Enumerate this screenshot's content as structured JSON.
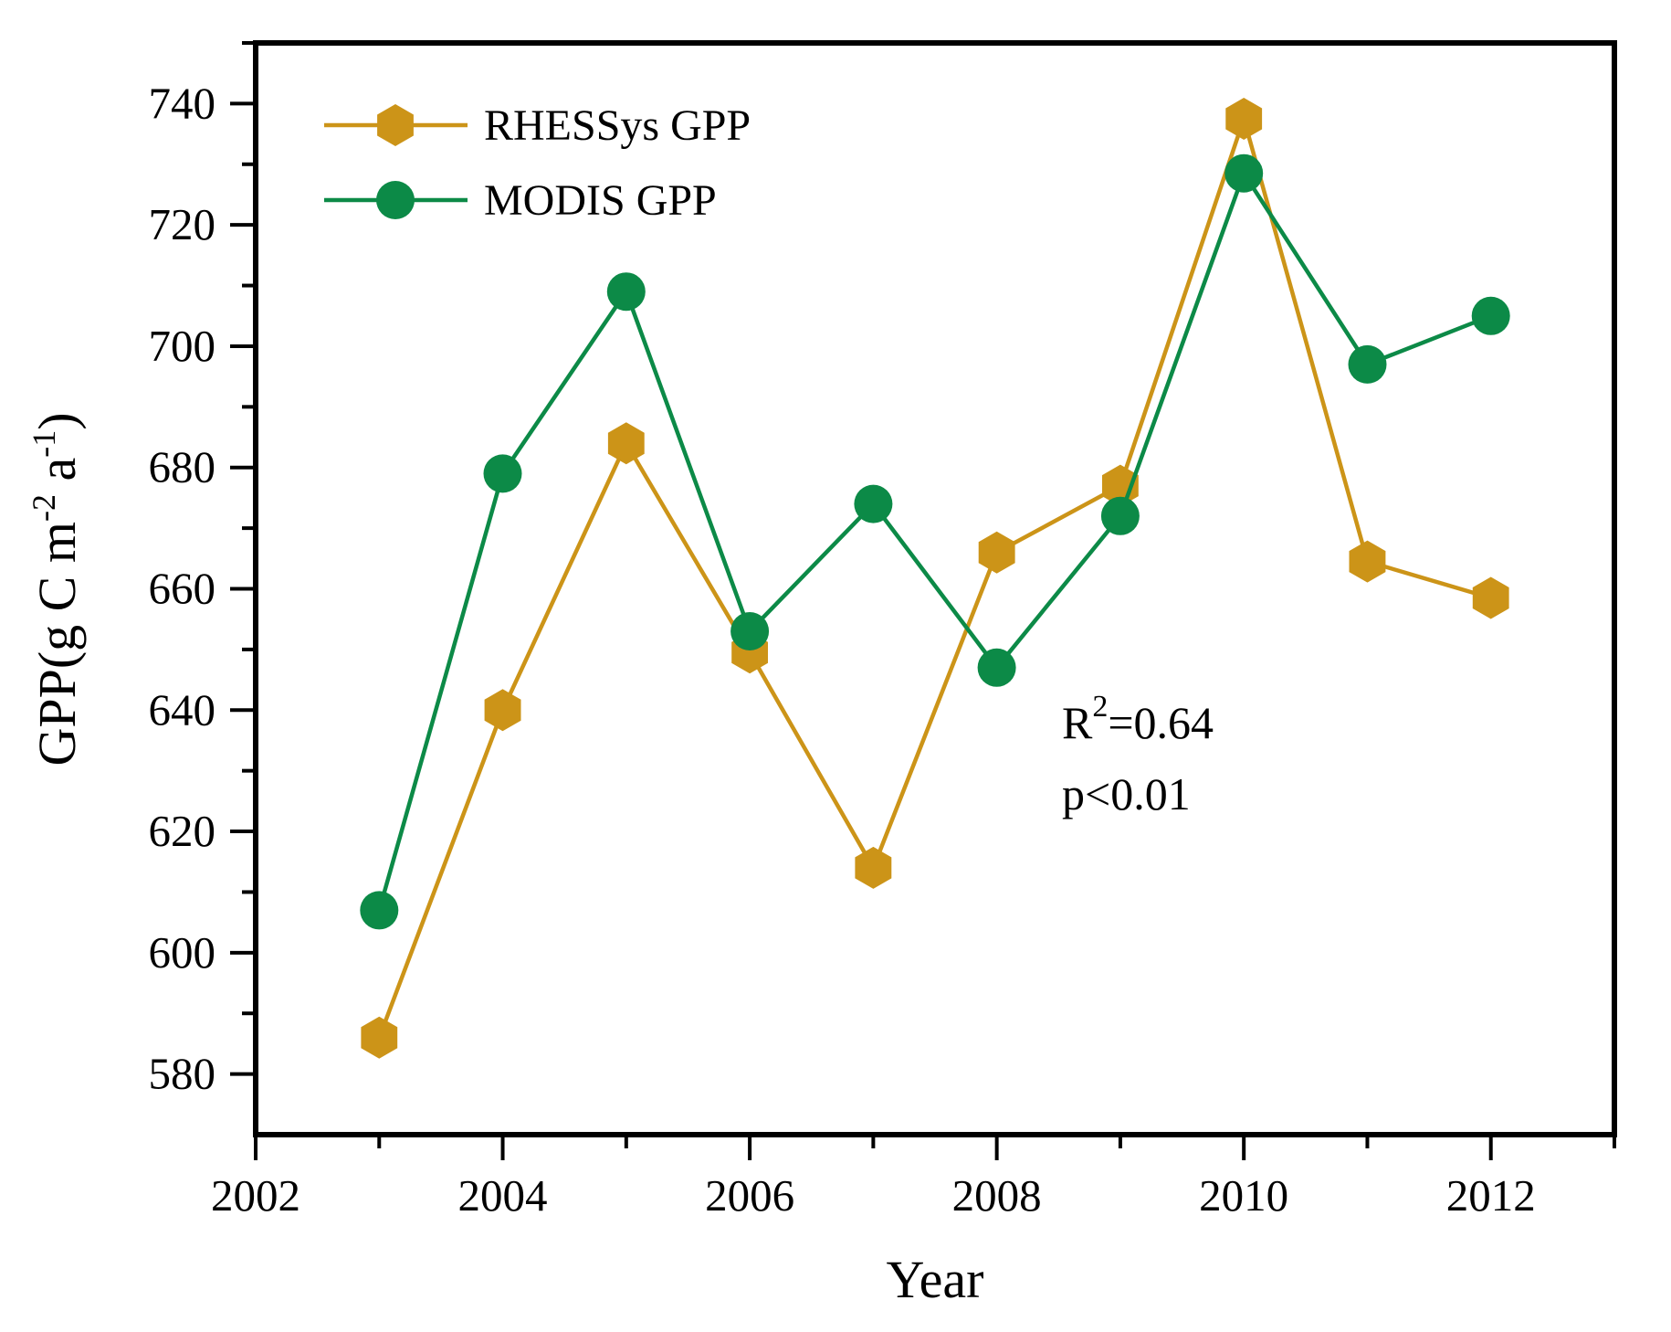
{
  "figure": {
    "background": "#ffffff",
    "axis_color": "#000000"
  },
  "chart_data": {
    "type": "line",
    "title": "",
    "xlabel": "Year",
    "ylabel": "GPP(g C m⁻² a⁻¹)",
    "ylabel_parts": {
      "p1": "GPP(g C m",
      "s1": "-2",
      "p2": " a",
      "s2": "-1",
      "p3": ")"
    },
    "x": [
      2003,
      2004,
      2005,
      2006,
      2007,
      2008,
      2009,
      2010,
      2011,
      2012
    ],
    "series": [
      {
        "name": "RHESSys GPP",
        "marker": "hexagon",
        "color": "#CC9418",
        "values": [
          586,
          640,
          684,
          649.5,
          614,
          666,
          677,
          737.5,
          664.5,
          658.5
        ]
      },
      {
        "name": "MODIS GPP",
        "marker": "circle",
        "color": "#0C8A47",
        "values": [
          607,
          679,
          709,
          653,
          674,
          647,
          672,
          728.5,
          697,
          705
        ]
      }
    ],
    "xlim": [
      2002,
      2013
    ],
    "ylim": [
      570,
      750
    ],
    "x_major_ticks": [
      2002,
      2004,
      2006,
      2008,
      2010,
      2012
    ],
    "x_minor_ticks": [
      2003,
      2005,
      2007,
      2009,
      2011,
      2013
    ],
    "y_major_ticks": [
      580,
      600,
      620,
      640,
      660,
      680,
      700,
      720,
      740
    ],
    "y_minor_ticks": [
      590,
      610,
      630,
      650,
      670,
      690,
      710,
      730,
      750
    ],
    "grid": false,
    "legend_position": "top-left-inside",
    "annotation": {
      "text_line1": "R²=0.64",
      "r_base": "R",
      "r_sup": "2",
      "r_rest": "=0.64",
      "line2": "p<0.01"
    }
  }
}
